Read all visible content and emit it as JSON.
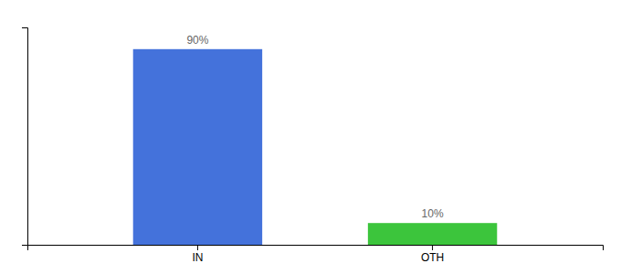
{
  "chart_data": {
    "type": "bar",
    "categories": [
      "IN",
      "OTH"
    ],
    "values": [
      90,
      10
    ],
    "value_labels": [
      "90%",
      "10%"
    ],
    "colors": [
      "#4472db",
      "#3cc53c"
    ],
    "ylim": [
      0,
      100
    ],
    "data_labels": true,
    "tick_labels": "x"
  }
}
